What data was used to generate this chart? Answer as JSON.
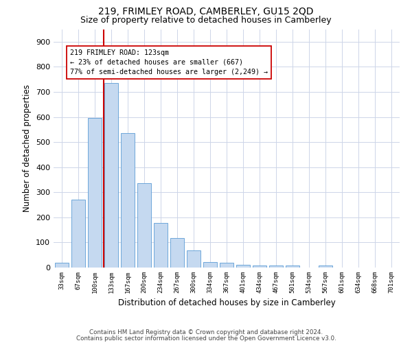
{
  "title1": "219, FRIMLEY ROAD, CAMBERLEY, GU15 2QD",
  "title2": "Size of property relative to detached houses in Camberley",
  "xlabel": "Distribution of detached houses by size in Camberley",
  "ylabel": "Number of detached properties",
  "bins": [
    "33sqm",
    "67sqm",
    "100sqm",
    "133sqm",
    "167sqm",
    "200sqm",
    "234sqm",
    "267sqm",
    "300sqm",
    "334sqm",
    "367sqm",
    "401sqm",
    "434sqm",
    "467sqm",
    "501sqm",
    "534sqm",
    "567sqm",
    "601sqm",
    "634sqm",
    "668sqm",
    "701sqm"
  ],
  "values": [
    20,
    270,
    595,
    735,
    535,
    335,
    178,
    118,
    68,
    22,
    20,
    12,
    8,
    8,
    7,
    0,
    7,
    0,
    0,
    0,
    0
  ],
  "bar_color": "#c5d9f0",
  "bar_edge_color": "#5b9bd5",
  "vline_x_index": 3,
  "vline_color": "#cc0000",
  "annotation_line1": "219 FRIMLEY ROAD: 123sqm",
  "annotation_line2": "← 23% of detached houses are smaller (667)",
  "annotation_line3": "77% of semi-detached houses are larger (2,249) →",
  "annotation_box_color": "#ffffff",
  "annotation_box_edge_color": "#cc0000",
  "ylim": [
    0,
    950
  ],
  "yticks": [
    0,
    100,
    200,
    300,
    400,
    500,
    600,
    700,
    800,
    900
  ],
  "footer1": "Contains HM Land Registry data © Crown copyright and database right 2024.",
  "footer2": "Contains public sector information licensed under the Open Government Licence v3.0.",
  "background_color": "#ffffff",
  "grid_color": "#cdd5e8",
  "title1_fontsize": 10,
  "title2_fontsize": 9
}
